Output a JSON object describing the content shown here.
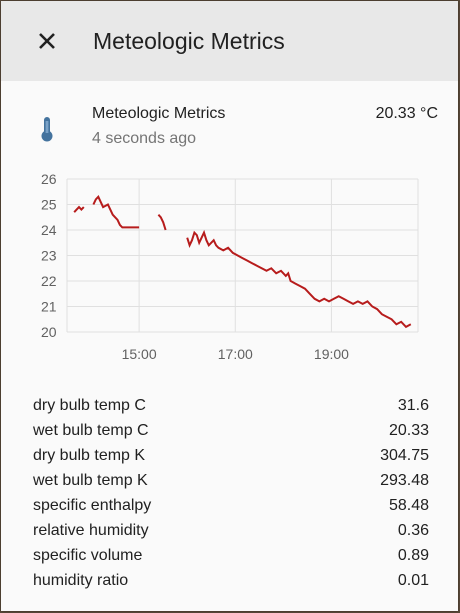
{
  "dialog": {
    "title": "Meteologic Metrics"
  },
  "entity": {
    "icon": "thermometer-icon",
    "name": "Meteologic Metrics",
    "last_changed": "4 seconds ago",
    "state": "20.33 °C"
  },
  "colors": {
    "line": "#b71c1c",
    "icon": "#44739e",
    "header_bg": "#e8e8e8"
  },
  "chart_data": {
    "type": "line",
    "yticks": [
      "26",
      "25",
      "24",
      "23",
      "22",
      "21",
      "20"
    ],
    "xticks": [
      "15:00",
      "17:00",
      "19:00"
    ],
    "ylim": [
      20,
      26
    ],
    "grid": true,
    "segments": [
      [
        [
          13.6,
          24.7
        ],
        [
          13.65,
          24.8
        ],
        [
          13.7,
          24.9
        ],
        [
          13.75,
          24.8
        ],
        [
          13.8,
          24.9
        ]
      ],
      [
        [
          14.0,
          25.0
        ],
        [
          14.05,
          25.2
        ],
        [
          14.1,
          25.3
        ],
        [
          14.15,
          25.1
        ],
        [
          14.2,
          24.9
        ],
        [
          14.3,
          25.0
        ],
        [
          14.35,
          24.8
        ],
        [
          14.4,
          24.6
        ],
        [
          14.5,
          24.4
        ],
        [
          14.55,
          24.2
        ],
        [
          14.6,
          24.1
        ],
        [
          14.8,
          24.1
        ],
        [
          14.95,
          24.1
        ]
      ],
      [
        [
          15.35,
          24.6
        ],
        [
          15.4,
          24.5
        ],
        [
          15.45,
          24.3
        ],
        [
          15.5,
          24.0
        ]
      ],
      [
        [
          15.95,
          23.7
        ],
        [
          16.0,
          23.4
        ],
        [
          16.05,
          23.6
        ],
        [
          16.1,
          23.9
        ],
        [
          16.15,
          23.8
        ],
        [
          16.2,
          23.5
        ],
        [
          16.25,
          23.7
        ],
        [
          16.3,
          23.9
        ],
        [
          16.35,
          23.6
        ],
        [
          16.4,
          23.4
        ],
        [
          16.5,
          23.6
        ],
        [
          16.55,
          23.4
        ],
        [
          16.6,
          23.3
        ],
        [
          16.7,
          23.2
        ],
        [
          16.8,
          23.3
        ],
        [
          16.9,
          23.1
        ],
        [
          17.0,
          23.0
        ],
        [
          17.1,
          22.9
        ],
        [
          17.2,
          22.8
        ],
        [
          17.3,
          22.7
        ],
        [
          17.4,
          22.6
        ],
        [
          17.5,
          22.5
        ],
        [
          17.6,
          22.4
        ],
        [
          17.7,
          22.5
        ],
        [
          17.8,
          22.3
        ],
        [
          17.9,
          22.4
        ],
        [
          18.0,
          22.2
        ],
        [
          18.05,
          22.3
        ],
        [
          18.1,
          22.0
        ],
        [
          18.2,
          21.9
        ],
        [
          18.3,
          21.8
        ],
        [
          18.4,
          21.7
        ],
        [
          18.5,
          21.5
        ],
        [
          18.6,
          21.3
        ],
        [
          18.7,
          21.2
        ],
        [
          18.8,
          21.3
        ],
        [
          18.9,
          21.2
        ],
        [
          19.0,
          21.3
        ],
        [
          19.1,
          21.4
        ],
        [
          19.2,
          21.3
        ],
        [
          19.3,
          21.2
        ],
        [
          19.4,
          21.1
        ],
        [
          19.5,
          21.2
        ],
        [
          19.6,
          21.1
        ],
        [
          19.7,
          21.2
        ],
        [
          19.8,
          21.0
        ],
        [
          19.9,
          20.9
        ],
        [
          20.0,
          20.7
        ],
        [
          20.1,
          20.6
        ],
        [
          20.2,
          20.5
        ],
        [
          20.3,
          20.3
        ],
        [
          20.4,
          20.4
        ],
        [
          20.5,
          20.2
        ],
        [
          20.6,
          20.3
        ]
      ]
    ]
  },
  "attributes": [
    {
      "label": "dry bulb temp C",
      "value": "31.6"
    },
    {
      "label": "wet bulb temp C",
      "value": "20.33"
    },
    {
      "label": "dry bulb temp K",
      "value": "304.75"
    },
    {
      "label": "wet bulb temp K",
      "value": "293.48"
    },
    {
      "label": "specific enthalpy",
      "value": "58.48"
    },
    {
      "label": "relative humidity",
      "value": "0.36"
    },
    {
      "label": "specific volume",
      "value": "0.89"
    },
    {
      "label": "humidity ratio",
      "value": "0.01"
    }
  ]
}
